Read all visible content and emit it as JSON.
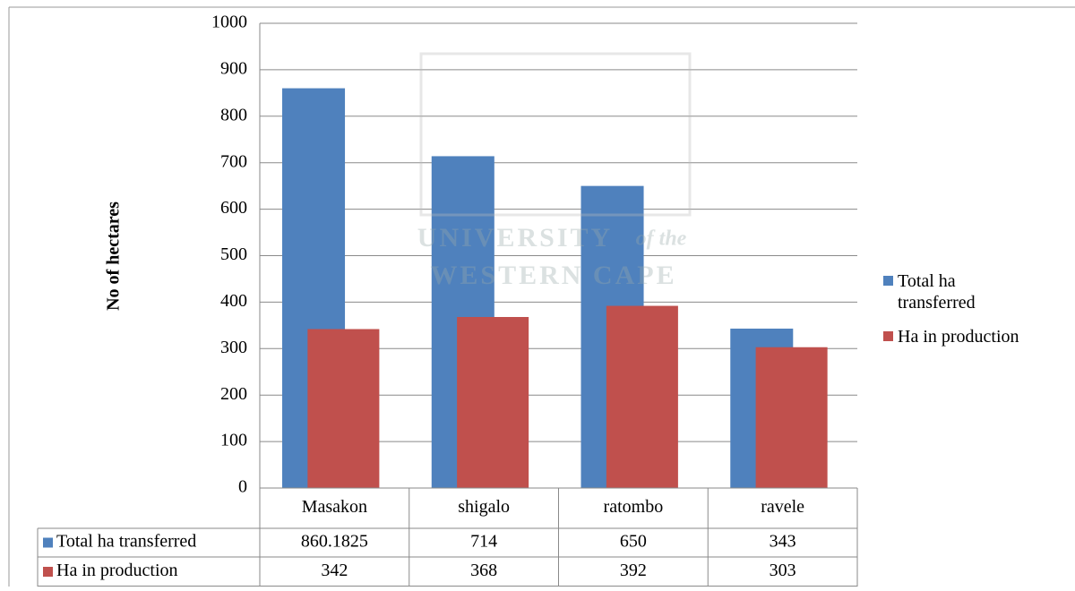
{
  "chart_data": {
    "type": "bar",
    "y_label": "No of hectares",
    "watermark": {
      "line1": "UNIVERSITY",
      "line1_suffix": "of the",
      "line2": "WESTERN CAPE"
    },
    "categories": [
      "Masakon",
      "shigalo",
      "ratombo",
      "ravele"
    ],
    "series": [
      {
        "name": "Total ha transferred",
        "color": "#4f81bd",
        "values": [
          860.1825,
          714,
          650,
          343
        ]
      },
      {
        "name": "Ha in production",
        "color": "#c0504d",
        "values": [
          342,
          368,
          392,
          303
        ]
      }
    ],
    "ylim": [
      0,
      1000
    ],
    "yticks": [
      0,
      100,
      200,
      300,
      400,
      500,
      600,
      700,
      800,
      900,
      1000
    ],
    "grid": true,
    "legend": "right",
    "data_table": true
  }
}
